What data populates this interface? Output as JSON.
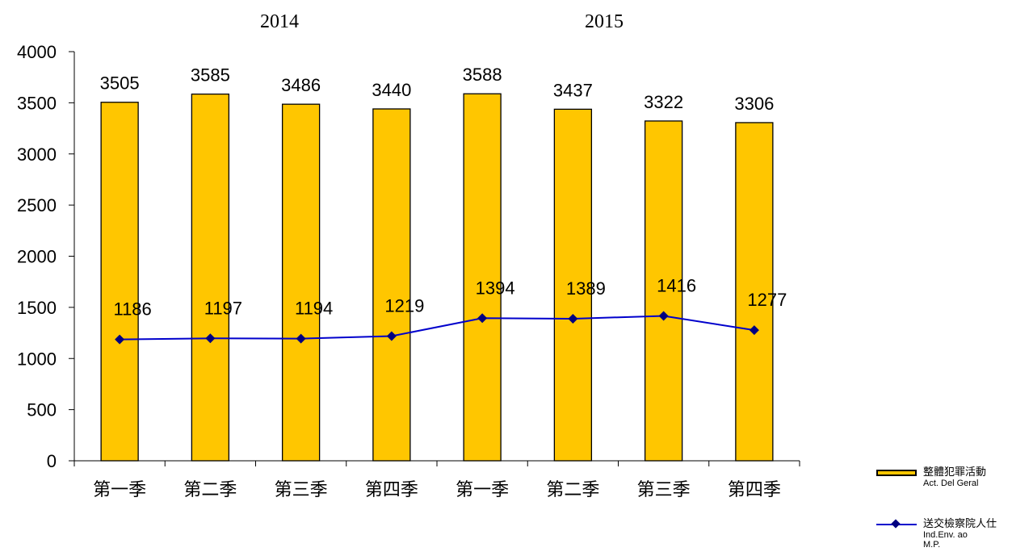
{
  "chart_data": {
    "type": "bar",
    "group_labels": [
      "2014",
      "2015"
    ],
    "categories": [
      "第一季",
      "第二季",
      "第三季",
      "第四季",
      "第一季",
      "第二季",
      "第三季",
      "第四季"
    ],
    "y_ticks": [
      "0",
      "500",
      "1000",
      "1500",
      "2000",
      "2500",
      "3000",
      "3500",
      "4000"
    ],
    "ylim": [
      0,
      4000
    ],
    "series": [
      {
        "name": "整體犯罪活動",
        "name_pt": "Act. Del Geral",
        "type": "bar",
        "color": "#FFC600",
        "values": [
          3505,
          3585,
          3486,
          3440,
          3588,
          3437,
          3322,
          3306
        ]
      },
      {
        "name": "送交檢察院人仕",
        "name_pt": "Ind.Env. ao M.P.",
        "type": "line",
        "color": "#0000CC",
        "values": [
          1186,
          1197,
          1194,
          1219,
          1394,
          1389,
          1416,
          1277
        ]
      }
    ],
    "legend_position": "bottom-right",
    "grid": false
  }
}
